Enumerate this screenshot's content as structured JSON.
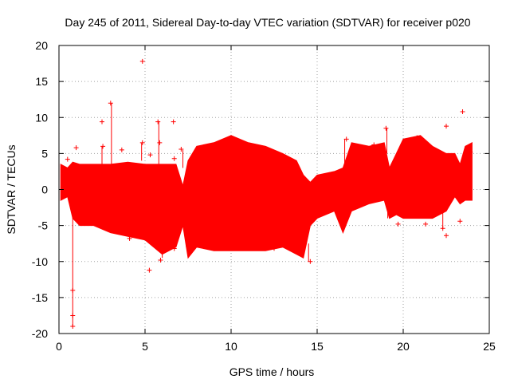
{
  "chart_data": {
    "type": "scatter",
    "title": "Day 245 of 2011, Sidereal Day-to-day VTEC variation (SDTVAR) for receiver p020",
    "xlabel": "GPS time / hours",
    "ylabel": "SDTVAR / TECUs",
    "xlim": [
      0,
      25
    ],
    "ylim": [
      -20,
      20
    ],
    "x_ticks": [
      0,
      5,
      10,
      15,
      20,
      25
    ],
    "y_ticks": [
      -20,
      -15,
      -10,
      -5,
      0,
      5,
      10,
      15,
      20
    ],
    "grid": true,
    "marker": "+",
    "color": "#ff0000",
    "band_envelope": {
      "x": [
        0.1,
        0.5,
        0.8,
        1.2,
        2.0,
        3.0,
        4.0,
        5.0,
        6.0,
        6.8,
        7.2,
        7.5,
        8.0,
        9.0,
        10.0,
        11.0,
        12.0,
        13.0,
        13.8,
        14.2,
        14.6,
        15.0,
        16.0,
        16.5,
        17.0,
        18.0,
        18.9,
        19.2,
        19.6,
        20.0,
        21.0,
        21.7,
        22.5,
        23.0,
        23.3,
        23.6,
        24.0
      ],
      "upper": [
        3.5,
        3.0,
        3.8,
        3.5,
        3.5,
        3.5,
        3.8,
        3.5,
        3.5,
        3.5,
        0.5,
        4.0,
        6.0,
        6.5,
        7.5,
        6.5,
        6.0,
        5.0,
        4.0,
        2.0,
        1.0,
        2.0,
        2.5,
        3.0,
        6.5,
        6.0,
        6.5,
        3.0,
        5.0,
        7.0,
        7.5,
        6.0,
        5.0,
        5.0,
        3.5,
        6.0,
        6.5
      ],
      "lower": [
        -1.5,
        -1.0,
        -4.0,
        -5.0,
        -5.0,
        -6.0,
        -6.5,
        -7.0,
        -9.0,
        -8.0,
        -5.0,
        -9.5,
        -8.0,
        -8.5,
        -8.5,
        -8.5,
        -8.5,
        -8.0,
        -9.0,
        -9.5,
        -5.0,
        -4.0,
        -3.0,
        -6.0,
        -3.0,
        -2.0,
        -1.5,
        -4.0,
        -3.5,
        -4.0,
        -4.0,
        -4.0,
        -3.0,
        -1.0,
        -2.0,
        -1.5,
        -1.5
      ]
    },
    "spikes": [
      {
        "x": 0.8,
        "y0": 0.0,
        "y1": -19.0
      },
      {
        "x": 3.05,
        "y0": 2.0,
        "y1": 12.0
      },
      {
        "x": 2.5,
        "y0": 2.5,
        "y1": 6.0
      },
      {
        "x": 4.8,
        "y0": 4.0,
        "y1": 6.5
      },
      {
        "x": 5.8,
        "y0": 2.0,
        "y1": 9.5
      },
      {
        "x": 6.0,
        "y0": -7.0,
        "y1": -9.5
      },
      {
        "x": 7.2,
        "y0": 3.0,
        "y1": 5.5
      },
      {
        "x": 7.4,
        "y0": -5.0,
        "y1": -8.0
      },
      {
        "x": 12.5,
        "y0": -6.0,
        "y1": -8.5
      },
      {
        "x": 14.5,
        "y0": -7.5,
        "y1": -10.0
      },
      {
        "x": 16.6,
        "y0": 3.5,
        "y1": 7.0
      },
      {
        "x": 19.05,
        "y0": 5.0,
        "y1": 8.5
      },
      {
        "x": 19.1,
        "y0": -2.0,
        "y1": -4.0
      },
      {
        "x": 22.3,
        "y0": -3.0,
        "y1": -5.5
      }
    ],
    "outliers": [
      {
        "x": 4.85,
        "y": 17.8
      },
      {
        "x": 3.0,
        "y": 12.0
      },
      {
        "x": 23.45,
        "y": 10.8
      },
      {
        "x": 5.75,
        "y": 9.4
      },
      {
        "x": 2.5,
        "y": 9.4
      },
      {
        "x": 6.65,
        "y": 9.4
      },
      {
        "x": 22.5,
        "y": 8.8
      },
      {
        "x": 19.0,
        "y": 8.5
      },
      {
        "x": 4.85,
        "y": 6.5
      },
      {
        "x": 5.85,
        "y": 6.5
      },
      {
        "x": 2.55,
        "y": 6.0
      },
      {
        "x": 3.65,
        "y": 5.5
      },
      {
        "x": 1.0,
        "y": 5.8
      },
      {
        "x": 7.1,
        "y": 5.6
      },
      {
        "x": 23.9,
        "y": 5.2
      },
      {
        "x": 5.3,
        "y": 4.8
      },
      {
        "x": 6.7,
        "y": 4.3
      },
      {
        "x": 0.5,
        "y": 4.2
      },
      {
        "x": 18.3,
        "y": 6.2
      },
      {
        "x": 16.7,
        "y": 7.0
      },
      {
        "x": 20.8,
        "y": 7.2
      },
      {
        "x": 5.25,
        "y": -11.2
      },
      {
        "x": 5.9,
        "y": -9.8
      },
      {
        "x": 6.7,
        "y": -8.2
      },
      {
        "x": 4.1,
        "y": -6.8
      },
      {
        "x": 19.7,
        "y": -4.8
      },
      {
        "x": 21.3,
        "y": -4.8
      },
      {
        "x": 22.3,
        "y": -5.4
      },
      {
        "x": 22.5,
        "y": -6.4
      },
      {
        "x": 23.3,
        "y": -4.4
      },
      {
        "x": 14.6,
        "y": -10.0
      },
      {
        "x": 0.8,
        "y": -19.0
      },
      {
        "x": 0.8,
        "y": -17.5
      },
      {
        "x": 0.8,
        "y": -14.0
      }
    ]
  }
}
